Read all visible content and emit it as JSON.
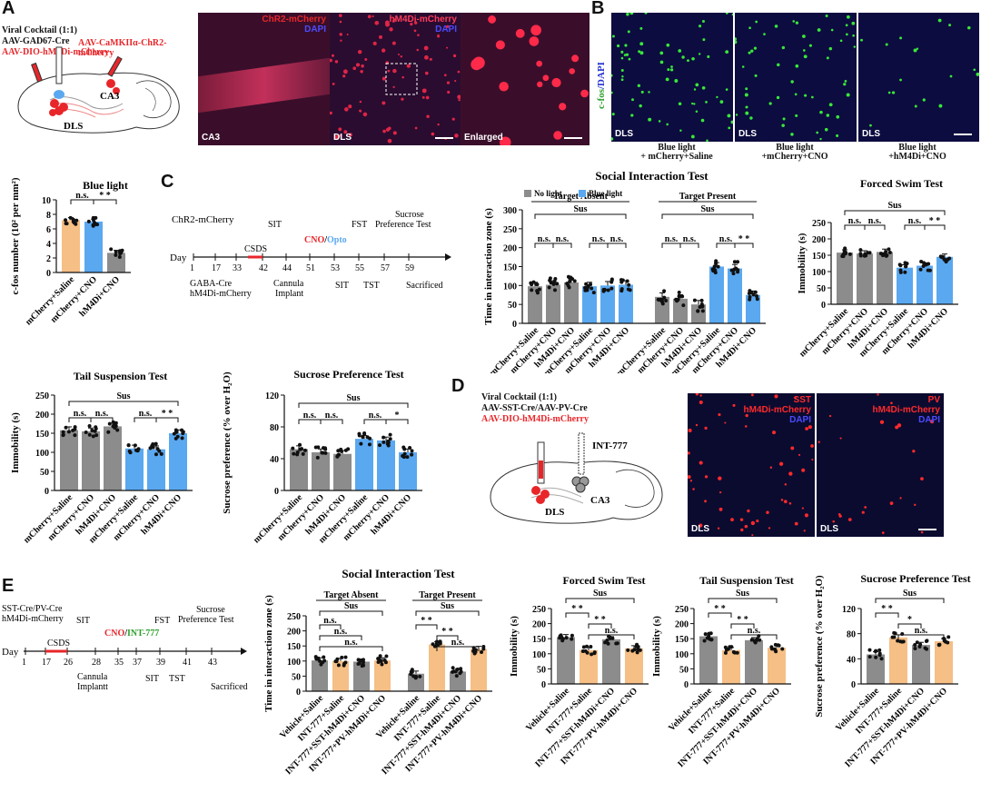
{
  "panels": {
    "A": "A",
    "B": "B",
    "C": "C",
    "D": "D",
    "E": "E"
  },
  "panelA": {
    "cocktail": "Viral Cocktail (1:1)",
    "cre": "AAV-GAD67-Cre",
    "dio": "AAV-DIO-hM4Di-mCherry",
    "camk": "AAV-CaMKIIα-ChR2-mCherry",
    "region1": "CA3",
    "region2": "DLS",
    "img1_title1": "ChR2-mCherry",
    "img1_title2": "DAPI",
    "img1_label": "CA3",
    "img2_title1": "hM4Di-mCherry",
    "img2_title2": "DAPI",
    "img2_label": "DLS",
    "img3_label": "Enlarged"
  },
  "panelB": {
    "ylabel_a": "c-fos",
    "ylabel_b": "/DAPI",
    "label": "DLS",
    "captions": [
      "Blue light\n+ mCherry+Saline",
      "Blue light\n+mCherry+CNO",
      "Blue light\n+hM4Di+CNO"
    ]
  },
  "timelineC": {
    "day": "Day",
    "ticks": [
      "1",
      "17",
      "33",
      "42",
      "44",
      "51",
      "53",
      "55",
      "57",
      "59"
    ],
    "chr2": "ChR2-mCherry",
    "csds": "CSDS",
    "sit": "SIT",
    "cno": "CNO",
    "slash": "/",
    "opto": "Opto",
    "fst": "FST",
    "sucrose1": "Sucrose",
    "sucrose2": "Preference Test",
    "gaba1": "GABA-Cre",
    "gaba2": "hM4Di-mCherry",
    "cannula1": "Cannula",
    "cannula2": "Implant",
    "sit2": "SIT",
    "tst": "TST",
    "sacrificed": "Sacrificed"
  },
  "timelineE": {
    "day": "Day",
    "ticks": [
      "1",
      "17",
      "26",
      "28",
      "35",
      "37",
      "39",
      "41",
      "43"
    ],
    "sst1": "SST-Cre/PV-Cre",
    "sst2": "hM4Di-mCherry",
    "csds": "CSDS",
    "sit": "SIT",
    "cno": "CNO",
    "slash": "/",
    "int": "INT-777",
    "fst": "FST",
    "sucrose1": "Sucrose",
    "sucrose2": "Preference Test",
    "cannula1": "Cannula",
    "cannula2": "Implantt",
    "sit2": "SIT",
    "tst": "TST",
    "sacrificed": "Sacrificed"
  },
  "panelD": {
    "cocktail": "Viral Cocktail (1:1)",
    "cre": "AAV-SST-Cre/AAV-PV-Cre",
    "dio": "AAV-DIO-hM4Di-mCherry",
    "int": "INT-777",
    "region1": "CA3",
    "region2": "DLS",
    "img1_t1": "SST",
    "img1_t2": "hM4Di-mCherry",
    "img1_t3": "DAPI",
    "img2_t1": "PV",
    "img2_t2": "hM4Di-mCherry",
    "img2_t3": "DAPI",
    "label": "DLS"
  },
  "colors": {
    "gray": "#8c8c8c",
    "orange": "#f5bf85",
    "blue": "#5aa8f0",
    "red": "#e8262a",
    "green": "#2ca02c"
  },
  "chart_data": [
    {
      "id": "cfos",
      "type": "bar",
      "title": "Blue light",
      "ylabel": "c-fos number (10² per mm²)",
      "ylim": [
        0,
        10
      ],
      "yticks": [
        0,
        2,
        4,
        6,
        8,
        10
      ],
      "categories": [
        "mCherry+Saline",
        "mCherry+CNO",
        "hM4Di+CNO"
      ],
      "values": [
        7.2,
        7.0,
        2.7
      ],
      "colors": [
        "orange",
        "blue",
        "gray"
      ],
      "sig": [
        {
          "a": 0,
          "b": 1,
          "t": "n.s."
        },
        {
          "a": 1,
          "b": 2,
          "t": "* *"
        }
      ]
    },
    {
      "id": "sitC",
      "type": "bar",
      "title": "Social Interaction Test",
      "ylabel": "Time in interaction zone (s)",
      "ylim": [
        0,
        300
      ],
      "yticks": [
        0,
        50,
        100,
        150,
        200,
        250,
        300
      ],
      "legend": [
        "No light",
        "Blue light"
      ],
      "groups": [
        "Target Absent",
        "Target Present"
      ],
      "group_sig": "Sus",
      "categories": [
        "mCherry+Saline",
        "mCherry+CNO",
        "hM4Di+CNO",
        "mCherry+Saline",
        "mCherry+CNO",
        "hM4Di+CNO",
        "mCherry+Saline",
        "mCherry+CNO",
        "hM4Di+CNO",
        "mCherry+Saline",
        "mCherry+CNO",
        "hM4Di+CNO"
      ],
      "values": [
        98,
        102,
        108,
        98,
        100,
        102,
        70,
        65,
        50,
        150,
        145,
        75
      ],
      "colors": [
        "gray",
        "gray",
        "gray",
        "blue",
        "blue",
        "blue",
        "gray",
        "gray",
        "gray",
        "blue",
        "blue",
        "blue"
      ],
      "sig": [
        {
          "a": 0,
          "b": 1,
          "t": "n.s."
        },
        {
          "a": 1,
          "b": 2,
          "t": "n.s."
        },
        {
          "a": 3,
          "b": 4,
          "t": "n.s."
        },
        {
          "a": 4,
          "b": 5,
          "t": "n.s."
        },
        {
          "a": 6,
          "b": 7,
          "t": "n.s."
        },
        {
          "a": 7,
          "b": 8,
          "t": "n.s."
        },
        {
          "a": 9,
          "b": 10,
          "t": "n.s."
        },
        {
          "a": 10,
          "b": 11,
          "t": "* *"
        }
      ]
    },
    {
      "id": "fstC",
      "type": "bar",
      "title": "Forced Swim Test",
      "ylabel": "Immobility (s)",
      "ylim": [
        0,
        250
      ],
      "yticks": [
        0,
        50,
        100,
        150,
        200,
        250
      ],
      "top_sig": "Sus",
      "categories": [
        "mCherry+Saline",
        "mCherry+CNO",
        "hM4Di+CNO",
        "mCherry+Saline",
        "mCherry+CNO",
        "hM4Di+CNO"
      ],
      "values": [
        158,
        155,
        160,
        112,
        118,
        145
      ],
      "colors": [
        "gray",
        "gray",
        "gray",
        "blue",
        "blue",
        "blue"
      ],
      "sig": [
        {
          "a": 0,
          "b": 1,
          "t": "n.s."
        },
        {
          "a": 1,
          "b": 2,
          "t": "n.s."
        },
        {
          "a": 3,
          "b": 4,
          "t": "n.s."
        },
        {
          "a": 4,
          "b": 5,
          "t": "* *"
        }
      ]
    },
    {
      "id": "tstC",
      "type": "bar",
      "title": "Tail Suspension Test",
      "ylabel": "Immobility (s)",
      "ylim": [
        0,
        250
      ],
      "yticks": [
        0,
        50,
        100,
        150,
        200,
        250
      ],
      "top_sig": "Sus",
      "categories": [
        "mCherry+Saline",
        "mCherry+CNO",
        "hM4Di+CNO",
        "mCherry+Saline",
        "mCherry+CNO",
        "hM4Di+CNO"
      ],
      "values": [
        158,
        155,
        168,
        110,
        108,
        150
      ],
      "colors": [
        "gray",
        "gray",
        "gray",
        "blue",
        "blue",
        "blue"
      ],
      "sig": [
        {
          "a": 0,
          "b": 1,
          "t": "n.s."
        },
        {
          "a": 1,
          "b": 2,
          "t": "n.s."
        },
        {
          "a": 3,
          "b": 4,
          "t": "n.s."
        },
        {
          "a": 4,
          "b": 5,
          "t": "* *"
        }
      ]
    },
    {
      "id": "sptC",
      "type": "bar",
      "title": "Sucrose Preference Test",
      "ylabel": "Sucrose preference (% over H₂O)",
      "ylim": [
        0,
        120
      ],
      "yticks": [
        0,
        40,
        80,
        120
      ],
      "top_sig": "Sus",
      "categories": [
        "mCherry+Saline",
        "mCherry+CNO",
        "hM4Di+CNO",
        "mCherry+Saline",
        "mCherry+CNO",
        "hM4Di+CNO"
      ],
      "values": [
        52,
        48,
        46,
        65,
        63,
        48
      ],
      "colors": [
        "gray",
        "gray",
        "gray",
        "blue",
        "blue",
        "blue"
      ],
      "sig": [
        {
          "a": 0,
          "b": 1,
          "t": "n.s."
        },
        {
          "a": 1,
          "b": 2,
          "t": "n.s."
        },
        {
          "a": 3,
          "b": 4,
          "t": "n.s."
        },
        {
          "a": 4,
          "b": 5,
          "t": "*"
        }
      ]
    },
    {
      "id": "sitE",
      "type": "bar",
      "title": "Social Interaction Test",
      "ylabel": "Time in interaction zone (s)",
      "ylim": [
        0,
        250
      ],
      "yticks": [
        0,
        50,
        100,
        150,
        200,
        250
      ],
      "groups": [
        "Target Absent",
        "Target Present"
      ],
      "group_sig": "Sus",
      "categories": [
        "Vehicle+Saline",
        "INT-777+Saline",
        "INT-777+SST-hM4Di+CNO",
        "INT-777+PV-hM4Di+CNO",
        "Vehicle+Saline",
        "INT-777+Saline",
        "INT-777+SST-hM4Di+CNO",
        "INT-777+PV-hM4Di+CNO"
      ],
      "values": [
        102,
        100,
        98,
        102,
        58,
        155,
        65,
        140
      ],
      "colors": [
        "gray",
        "orange",
        "gray",
        "orange",
        "gray",
        "orange",
        "gray",
        "orange"
      ],
      "sig": [
        {
          "a": 0,
          "b": 1,
          "t": "n.s."
        },
        {
          "a": 0,
          "b": 2,
          "t": "n.s."
        },
        {
          "a": 0,
          "b": 3,
          "t": "n.s."
        },
        {
          "a": 4,
          "b": 5,
          "t": "* *"
        },
        {
          "a": 5,
          "b": 6,
          "t": "* *"
        },
        {
          "a": 5,
          "b": 7,
          "t": "n.s."
        }
      ]
    },
    {
      "id": "fstE",
      "type": "bar",
      "title": "Forced Swim Test",
      "ylabel": "Immobility (s)",
      "ylim": [
        0,
        250
      ],
      "yticks": [
        0,
        50,
        100,
        150,
        200,
        250
      ],
      "top_sig": "Sus",
      "categories": [
        "Vehicle+Saline",
        "INT-777+Saline",
        "INT-777+SST-hM4Di+CNO",
        "INT-777+PV-hM4Di+CNO"
      ],
      "values": [
        155,
        112,
        148,
        118
      ],
      "colors": [
        "gray",
        "orange",
        "gray",
        "orange"
      ],
      "sig": [
        {
          "a": 0,
          "b": 1,
          "t": "* *"
        },
        {
          "a": 1,
          "b": 2,
          "t": "* *"
        },
        {
          "a": 1,
          "b": 3,
          "t": "n.s."
        }
      ]
    },
    {
      "id": "tstE",
      "type": "bar",
      "title": "Tail Suspension Test",
      "ylabel": "Immobility (s)",
      "ylim": [
        0,
        250
      ],
      "yticks": [
        0,
        50,
        100,
        150,
        200,
        250
      ],
      "top_sig": "Sus",
      "categories": [
        "Vehicle+Saline",
        "INT-777+Saline",
        "INT-777+SST-hM4Di+CNO",
        "INT-777+PV-hM4Di+CNO"
      ],
      "values": [
        158,
        112,
        145,
        120
      ],
      "colors": [
        "gray",
        "orange",
        "gray",
        "orange"
      ],
      "sig": [
        {
          "a": 0,
          "b": 1,
          "t": "* *"
        },
        {
          "a": 1,
          "b": 2,
          "t": "* *"
        },
        {
          "a": 1,
          "b": 3,
          "t": "n.s."
        }
      ]
    },
    {
      "id": "sptE",
      "type": "bar",
      "title": "Sucrose Preference Test",
      "ylabel": "Sucrose preference (% over H₂O)",
      "ylim": [
        0,
        120
      ],
      "yticks": [
        0,
        40,
        80,
        120
      ],
      "top_sig": "Sus",
      "categories": [
        "Vehicle+Saline",
        "INT-777+Saline",
        "INT-777+SST-hM4Di+CNO",
        "INT-777+PV-hM4Di+CNO"
      ],
      "values": [
        47,
        74,
        62,
        68
      ],
      "colors": [
        "gray",
        "orange",
        "gray",
        "orange"
      ],
      "sig": [
        {
          "a": 0,
          "b": 1,
          "t": "* *"
        },
        {
          "a": 1,
          "b": 2,
          "t": "*"
        },
        {
          "a": 1,
          "b": 3,
          "t": "n.s."
        }
      ]
    }
  ]
}
